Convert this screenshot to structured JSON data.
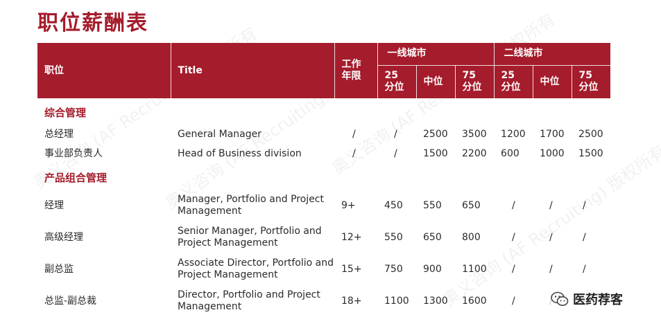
{
  "title": "职位薪酬表",
  "watermarks": [
    "奥义咨询 (AF Recruiting) 版权所有",
    "奥义咨询 (AF Recruiting) 版权所有",
    "奥义咨询 (AF Recruiting) 版权所有",
    "奥义咨询 (AF Recruiting) 版权所有"
  ],
  "header": {
    "position": "职位",
    "title": "Title",
    "years": "工作年限",
    "tier1": "一线城市",
    "tier2": "二线城市",
    "p25": "25分位",
    "p50": "中位",
    "p75": "75分位"
  },
  "sections": [
    {
      "name": "综合管理",
      "rows": [
        {
          "position": "总经理",
          "title": "General Manager",
          "years": "/",
          "t1_25": "/",
          "t1_50": "2500",
          "t1_75": "3500",
          "t2_25": "1200",
          "t2_50": "1700",
          "t2_75": "2500"
        },
        {
          "position": "事业部负责人",
          "title": "Head of Business division",
          "years": "/",
          "t1_25": "/",
          "t1_50": "1500",
          "t1_75": "2200",
          "t2_25": "600",
          "t2_50": "1000",
          "t2_75": "1500"
        }
      ]
    },
    {
      "name": "产品组合管理",
      "rows": [
        {
          "position": "经理",
          "title": "Manager, Portfolio and Project Management",
          "years": "9+",
          "t1_25": "450",
          "t1_50": "550",
          "t1_75": "650",
          "t2_25": "/",
          "t2_50": "/",
          "t2_75": "/"
        },
        {
          "position": "高级经理",
          "title": "Senior Manager, Portfolio and Project Management",
          "years": "12+",
          "t1_25": "550",
          "t1_50": "650",
          "t1_75": "800",
          "t2_25": "/",
          "t2_50": "/",
          "t2_75": "/"
        },
        {
          "position": "副总监",
          "title": "Associate Director, Portfolio and Project Management",
          "years": "15+",
          "t1_25": "750",
          "t1_50": "900",
          "t1_75": "1100",
          "t2_25": "/",
          "t2_50": "/",
          "t2_75": "/"
        },
        {
          "position": "总监-副总裁",
          "title": "Director, Portfolio and Project Management",
          "years": "18+",
          "t1_25": "1100",
          "t1_50": "1300",
          "t1_75": "1600",
          "t2_25": "/",
          "t2_50": "/",
          "t2_75": "/"
        }
      ]
    }
  ],
  "badge": {
    "icon": "wechat-icon",
    "text": "医药荐客"
  }
}
